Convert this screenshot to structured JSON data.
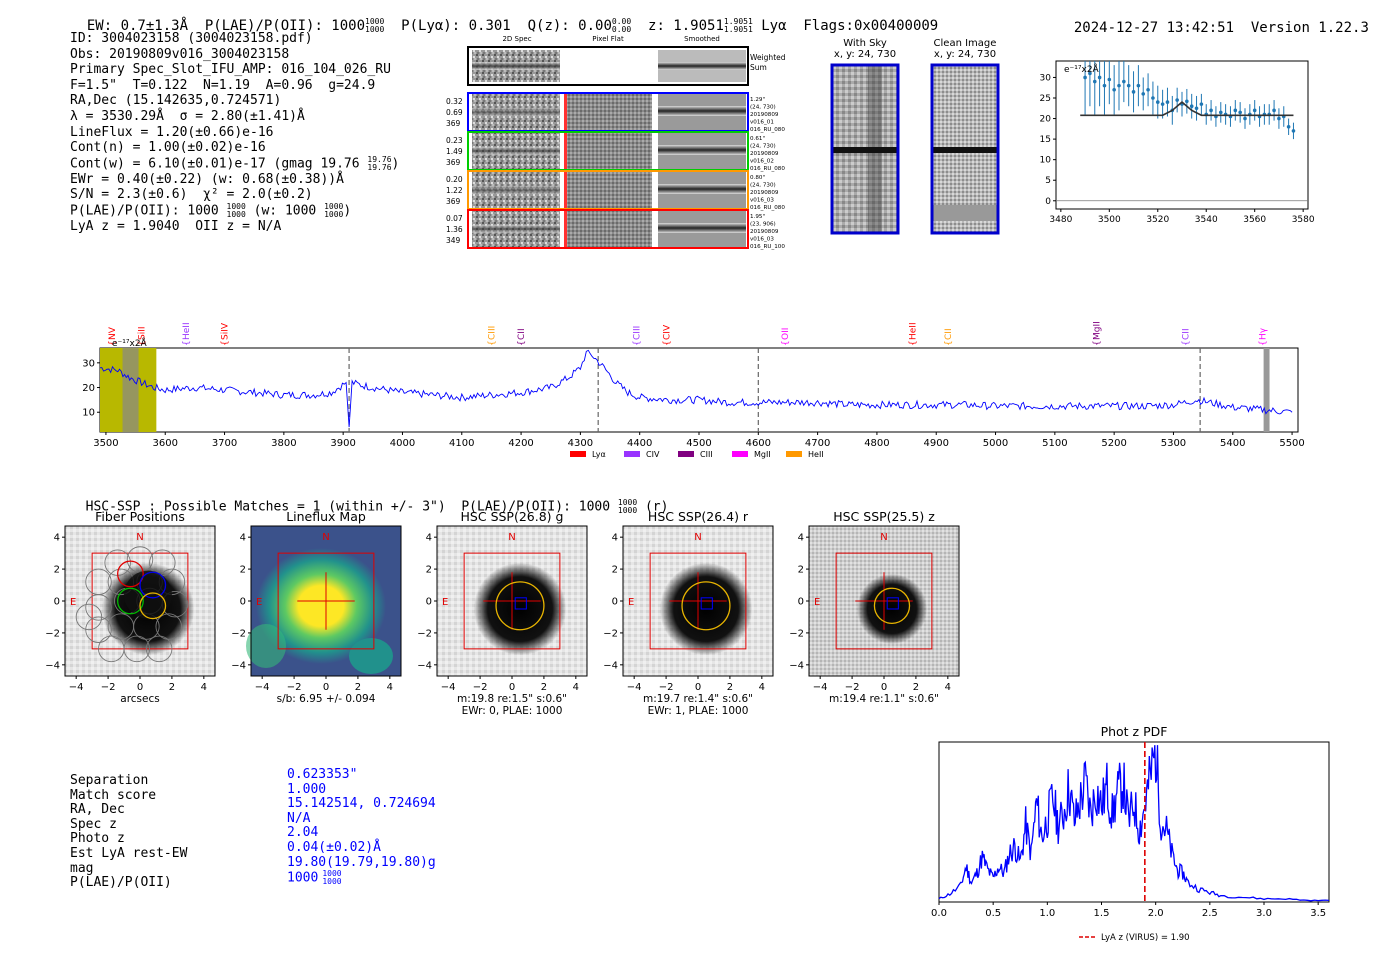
{
  "header": {
    "ew": "EW: 0.7±1.3Å",
    "plae_oii": "P(LAE)/P(OII): 1000",
    "plae_hi": "1000",
    "plae_lo": "1000",
    "plya": "P(Lyα): 0.301",
    "qz": "Q(z): 0.00",
    "qz_hi": "0.00",
    "qz_lo": "0.00",
    "z": "z: 1.9051",
    "z_hi": "1.9051",
    "z_lo": "1.9051",
    "z_line": "Lyα",
    "flags": "Flags:0x00400009",
    "timestamp": "2024-12-27 13:42:51",
    "version": "Version 1.22.3"
  },
  "info": {
    "id": "ID: 3004023158 (3004023158.pdf)",
    "obs": "Obs: 20190809v016_3004023158",
    "primary": "Primary Spec_Slot_IFU_AMP: 016_104_026_RU",
    "fparams": "F=1.5\"  T=0.122  N=1.19  A=0.96  g=24.9",
    "radec": "RA,Dec (15.142635,0.724571)",
    "lambda": "λ = 3530.29Å  σ = 2.80(±1.41)Å",
    "lineflux": "LineFlux = 1.20(±0.66)e-16",
    "contn": "Cont(n) = 1.00(±0.02)e-16",
    "contw": "Cont(w) = 6.10(±0.01)e-17 (gmag 19.76",
    "contw_hi": "19.76",
    "contw_lo": "19.76",
    "ewr": "EWr = 0.40(±0.22) (w: 0.68(±0.38))Å",
    "sn": "S/N = 2.3(±0.6)  χ² = 2.0(±0.2)",
    "plae": "P(LAE)/P(OII): 1000",
    "plae_hi": "1000",
    "plae_lo": "1000",
    "plae_w": "(w: 1000",
    "plae_w_hi": "1000",
    "plae_w_lo": "1000",
    "lyaz": "LyA z = 1.9040  OII z = N/A"
  },
  "cutouts": {
    "col_headers": [
      "2D Spec",
      "Pixel Flat",
      "Smoothed"
    ],
    "weighted_sum": [
      "Weighted",
      "Sum"
    ],
    "rows": [
      {
        "left": [
          "0.32",
          "0.69",
          "369"
        ],
        "right": [
          "1.29\"",
          "(24, 730)",
          "20190809",
          "v016_01",
          "016_RU_080"
        ],
        "color": "#0000ff"
      },
      {
        "left": [
          "0.23",
          "1.49",
          "369"
        ],
        "right": [
          "0.61\"",
          "(24, 730)",
          "20190809",
          "v016_02",
          "016_RU_080"
        ],
        "color": "#00cc00"
      },
      {
        "left": [
          "0.20",
          "1.22",
          "369"
        ],
        "right": [
          "0.80\"",
          "(24, 730)",
          "20190809",
          "v016_03",
          "016_RU_080"
        ],
        "color": "#ff9900"
      },
      {
        "left": [
          "0.07",
          "1.36",
          "349"
        ],
        "right": [
          "1.95\"",
          "(23, 906)",
          "20190809",
          "v016_03",
          "016_RU_100"
        ],
        "color": "#ff0000"
      }
    ],
    "with_sky_title": "With Sky",
    "with_sky_xy": "x, y: 24, 730",
    "clean_title": "Clean Image",
    "clean_xy": "x, y: 24, 730"
  },
  "zoom_plot": {
    "ylabel_corner": "e⁻¹⁷x2Å",
    "xticks": [
      "3480",
      "3500",
      "3520",
      "3540",
      "3560",
      "3580"
    ],
    "yticks": [
      "0",
      "5",
      "10",
      "15",
      "20",
      "25",
      "30"
    ]
  },
  "spectrum": {
    "ylabel_corner": "e⁻¹⁷x2Å",
    "xticks": [
      "3500",
      "3600",
      "3700",
      "3800",
      "3900",
      "4000",
      "4100",
      "4200",
      "4300",
      "4400",
      "4500",
      "4600",
      "4700",
      "4800",
      "4900",
      "5000",
      "5100",
      "5200",
      "5300",
      "5400",
      "5500"
    ],
    "yticks": [
      "10",
      "20",
      "30"
    ],
    "lines": [
      {
        "label": "NV",
        "color": "#ff0000"
      },
      {
        "label": "SiII",
        "color": "#ff0000"
      },
      {
        "label": "HeII",
        "color": "#9933ff"
      },
      {
        "label": "SiIV",
        "color": "#ff0000"
      },
      {
        "label": "CIII",
        "color": "#ff9900"
      },
      {
        "label": "CII",
        "color": "#800080"
      },
      {
        "label": "CIII",
        "color": "#9933ff"
      },
      {
        "label": "CIV",
        "color": "#ff0000"
      },
      {
        "label": "OII",
        "color": "#ff00ff"
      },
      {
        "label": "HeII",
        "color": "#ff0000"
      },
      {
        "label": "CII",
        "color": "#ff9900"
      },
      {
        "label": "MgII",
        "color": "#800080"
      },
      {
        "label": "CII",
        "color": "#9933ff"
      },
      {
        "label": "Hγ",
        "color": "#ff00ff"
      }
    ],
    "legend": [
      {
        "label": "Lyα",
        "color": "#ff0000"
      },
      {
        "label": "CIV",
        "color": "#9933ff"
      },
      {
        "label": "CIII",
        "color": "#800080"
      },
      {
        "label": "MgII",
        "color": "#ff00ff"
      },
      {
        "label": "HeII",
        "color": "#ff9900"
      }
    ]
  },
  "hsc": {
    "summary": "HSC-SSP : Possible Matches = 1 (within +/- 3\")  P(LAE)/P(OII): 1000",
    "summary_hi": "1000",
    "summary_lo": "1000",
    "summary_band": "(r)",
    "panels": [
      {
        "title": "Fiber Positions",
        "label1": "arcsecs",
        "label2": ""
      },
      {
        "title": "Lineflux Map",
        "label1": "s/b: 6.95 +/- 0.094",
        "label2": ""
      },
      {
        "title": "HSC SSP(26.8) g",
        "label1": "m:19.8  re:1.5\"  s:0.6\"",
        "label2": "EWr: 0, PLAE: 1000"
      },
      {
        "title": "HSC SSP(26.4) r",
        "label1": "m:19.7  re:1.4\"  s:0.6\"",
        "label2": "EWr: 1, PLAE: 1000"
      },
      {
        "title": "HSC SSP(25.5) z",
        "label1": "m:19.4  re:1.1\"  s:0.6\"",
        "label2": ""
      }
    ],
    "xticks": [
      "−4",
      "−2",
      "0",
      "2",
      "4"
    ],
    "yticks": [
      "4",
      "2",
      "0",
      "−2",
      "−4"
    ],
    "compass_n": "N",
    "compass_e": "E"
  },
  "match_table": {
    "labels": [
      "Separation",
      "Match score",
      "RA, Dec",
      "Spec z",
      "Photo z",
      "Est LyA rest-EW",
      "mag",
      "P(LAE)/P(OII)"
    ],
    "values": [
      "0.623353\"",
      "1.000",
      "15.142514, 0.724694",
      "N/A",
      "2.04",
      "0.04(±0.02)Å",
      "19.80(19.79,19.80)g",
      "1000"
    ],
    "plae_hi": "1000",
    "plae_lo": "1000"
  },
  "chart_data": [
    {
      "type": "scatter",
      "title": "",
      "xlabel": "",
      "ylabel": "e⁻¹⁷x2Å",
      "xlim": [
        3478,
        3582
      ],
      "ylim": [
        -2,
        34
      ],
      "points_x": [
        3490,
        3492,
        3494,
        3496,
        3498,
        3500,
        3502,
        3504,
        3506,
        3508,
        3510,
        3512,
        3514,
        3516,
        3518,
        3520,
        3522,
        3524,
        3526,
        3528,
        3530,
        3532,
        3534,
        3536,
        3538,
        3540,
        3542,
        3544,
        3546,
        3548,
        3550,
        3552,
        3554,
        3556,
        3558,
        3560,
        3562,
        3564,
        3566,
        3568,
        3570,
        3572,
        3574,
        3576
      ],
      "points_y": [
        30,
        31,
        29,
        30,
        28,
        29.5,
        27,
        28,
        29,
        28,
        26.5,
        28,
        26,
        27,
        25,
        24,
        23.5,
        24,
        22,
        24.5,
        23.5,
        24.2,
        23,
        22.5,
        23.5,
        21,
        22,
        20.5,
        21.5,
        21,
        20.5,
        22,
        21.5,
        20,
        21,
        22,
        20.5,
        21,
        21,
        22,
        20,
        20.5,
        18,
        17
      ],
      "yerr": [
        9,
        8,
        8,
        7,
        7,
        6,
        6,
        6,
        5,
        5,
        5,
        5,
        4,
        4,
        4,
        4,
        3.5,
        3.5,
        3.5,
        3,
        3,
        3,
        3,
        3,
        2.5,
        2.5,
        2.5,
        2.5,
        2.5,
        2.5,
        2.5,
        2.5,
        2.5,
        2.5,
        2.5,
        2.5,
        2.5,
        2.5,
        2.5,
        2.5,
        2.5,
        2.5,
        2,
        2
      ],
      "model_x": [
        3488,
        3522,
        3526,
        3530,
        3534,
        3538,
        3576
      ],
      "model_y": [
        20.8,
        20.8,
        22.0,
        24.0,
        22.0,
        20.8,
        20.8
      ]
    },
    {
      "type": "line",
      "title": "",
      "xlabel": "",
      "ylabel": "e⁻¹⁷x2Å",
      "xlim": [
        3490,
        5510
      ],
      "ylim": [
        2,
        36
      ],
      "x": [
        3490,
        3520,
        3540,
        3560,
        3580,
        3600,
        3650,
        3700,
        3750,
        3800,
        3850,
        3880,
        3905,
        3910,
        3915,
        3930,
        3950,
        4000,
        4050,
        4100,
        4150,
        4200,
        4250,
        4280,
        4300,
        4310,
        4320,
        4340,
        4360,
        4380,
        4400,
        4450,
        4500,
        4550,
        4600,
        4650,
        4700,
        4750,
        4800,
        4850,
        4900,
        4950,
        5000,
        5050,
        5100,
        5150,
        5200,
        5250,
        5300,
        5340,
        5360,
        5400,
        5450,
        5500
      ],
      "y": [
        28,
        27,
        24,
        22,
        20,
        19,
        20,
        19,
        18,
        17,
        17,
        18,
        22,
        4,
        22,
        21,
        20,
        18,
        17,
        16,
        17,
        18,
        20,
        24,
        28,
        34,
        33,
        28,
        22,
        18,
        16,
        15,
        15,
        14,
        14,
        14,
        14,
        13,
        13,
        13,
        13,
        13,
        12.5,
        12.5,
        12.5,
        12.5,
        12.5,
        12.5,
        13,
        15,
        14,
        12,
        11,
        10
      ],
      "vlines_x": [
        3910,
        4330,
        4600,
        5345
      ],
      "line_labels_x": [
        3510,
        3560,
        3635,
        3700,
        4150,
        4200,
        4395,
        4445,
        4645,
        4860,
        4920,
        5170,
        5320,
        5450
      ],
      "line_labels": [
        "NV",
        "SiII",
        "HeII",
        "SiIV",
        "CIII",
        "CII",
        "CIII",
        "CIV",
        "OII",
        "HeII",
        "CII",
        "MgII",
        "CII",
        "Hγ"
      ],
      "legend": [
        "Lyα",
        "CIV",
        "CIII",
        "MgII",
        "HeII"
      ]
    },
    {
      "type": "line",
      "title": "Phot z PDF",
      "xlabel": "",
      "ylabel": "",
      "xlim": [
        0.0,
        3.6
      ],
      "ylim": [
        0,
        1.0
      ],
      "x": [
        0.0,
        0.1,
        0.2,
        0.25,
        0.3,
        0.35,
        0.4,
        0.45,
        0.5,
        0.55,
        0.6,
        0.65,
        0.7,
        0.75,
        0.8,
        0.85,
        0.9,
        0.95,
        1.0,
        1.05,
        1.1,
        1.15,
        1.2,
        1.25,
        1.3,
        1.35,
        1.4,
        1.45,
        1.5,
        1.55,
        1.6,
        1.65,
        1.7,
        1.75,
        1.8,
        1.85,
        1.9,
        1.95,
        2.0,
        2.05,
        2.1,
        2.15,
        2.2,
        2.25,
        2.3,
        2.4,
        2.5,
        2.6,
        2.8,
        3.0,
        3.2,
        3.4,
        3.6
      ],
      "y": [
        0.02,
        0.05,
        0.1,
        0.22,
        0.12,
        0.18,
        0.28,
        0.2,
        0.15,
        0.22,
        0.18,
        0.3,
        0.35,
        0.25,
        0.48,
        0.3,
        0.62,
        0.4,
        0.52,
        0.65,
        0.48,
        0.55,
        0.72,
        0.5,
        0.62,
        0.75,
        0.55,
        0.7,
        0.6,
        0.72,
        0.55,
        0.68,
        0.75,
        0.5,
        0.62,
        0.45,
        0.6,
        0.78,
        0.95,
        0.5,
        0.45,
        0.3,
        0.2,
        0.18,
        0.12,
        0.08,
        0.06,
        0.04,
        0.03,
        0.02,
        0.02,
        0.01,
        0.01
      ],
      "xticks": [
        "0.0",
        "0.5",
        "1.0",
        "1.5",
        "2.0",
        "2.5",
        "3.0",
        "3.5"
      ],
      "vline_x": 1.9,
      "legend": "LyA z (VIRUS) = 1.90"
    }
  ],
  "colors": {
    "spec_line": "#0000ff",
    "zoom_points": "#1f77b4",
    "model": "#333333",
    "pdf_line": "#0000ff",
    "pdf_marker": "#dd0000",
    "box_red": "#e00000",
    "fiber_yellow": "#e8b400"
  }
}
